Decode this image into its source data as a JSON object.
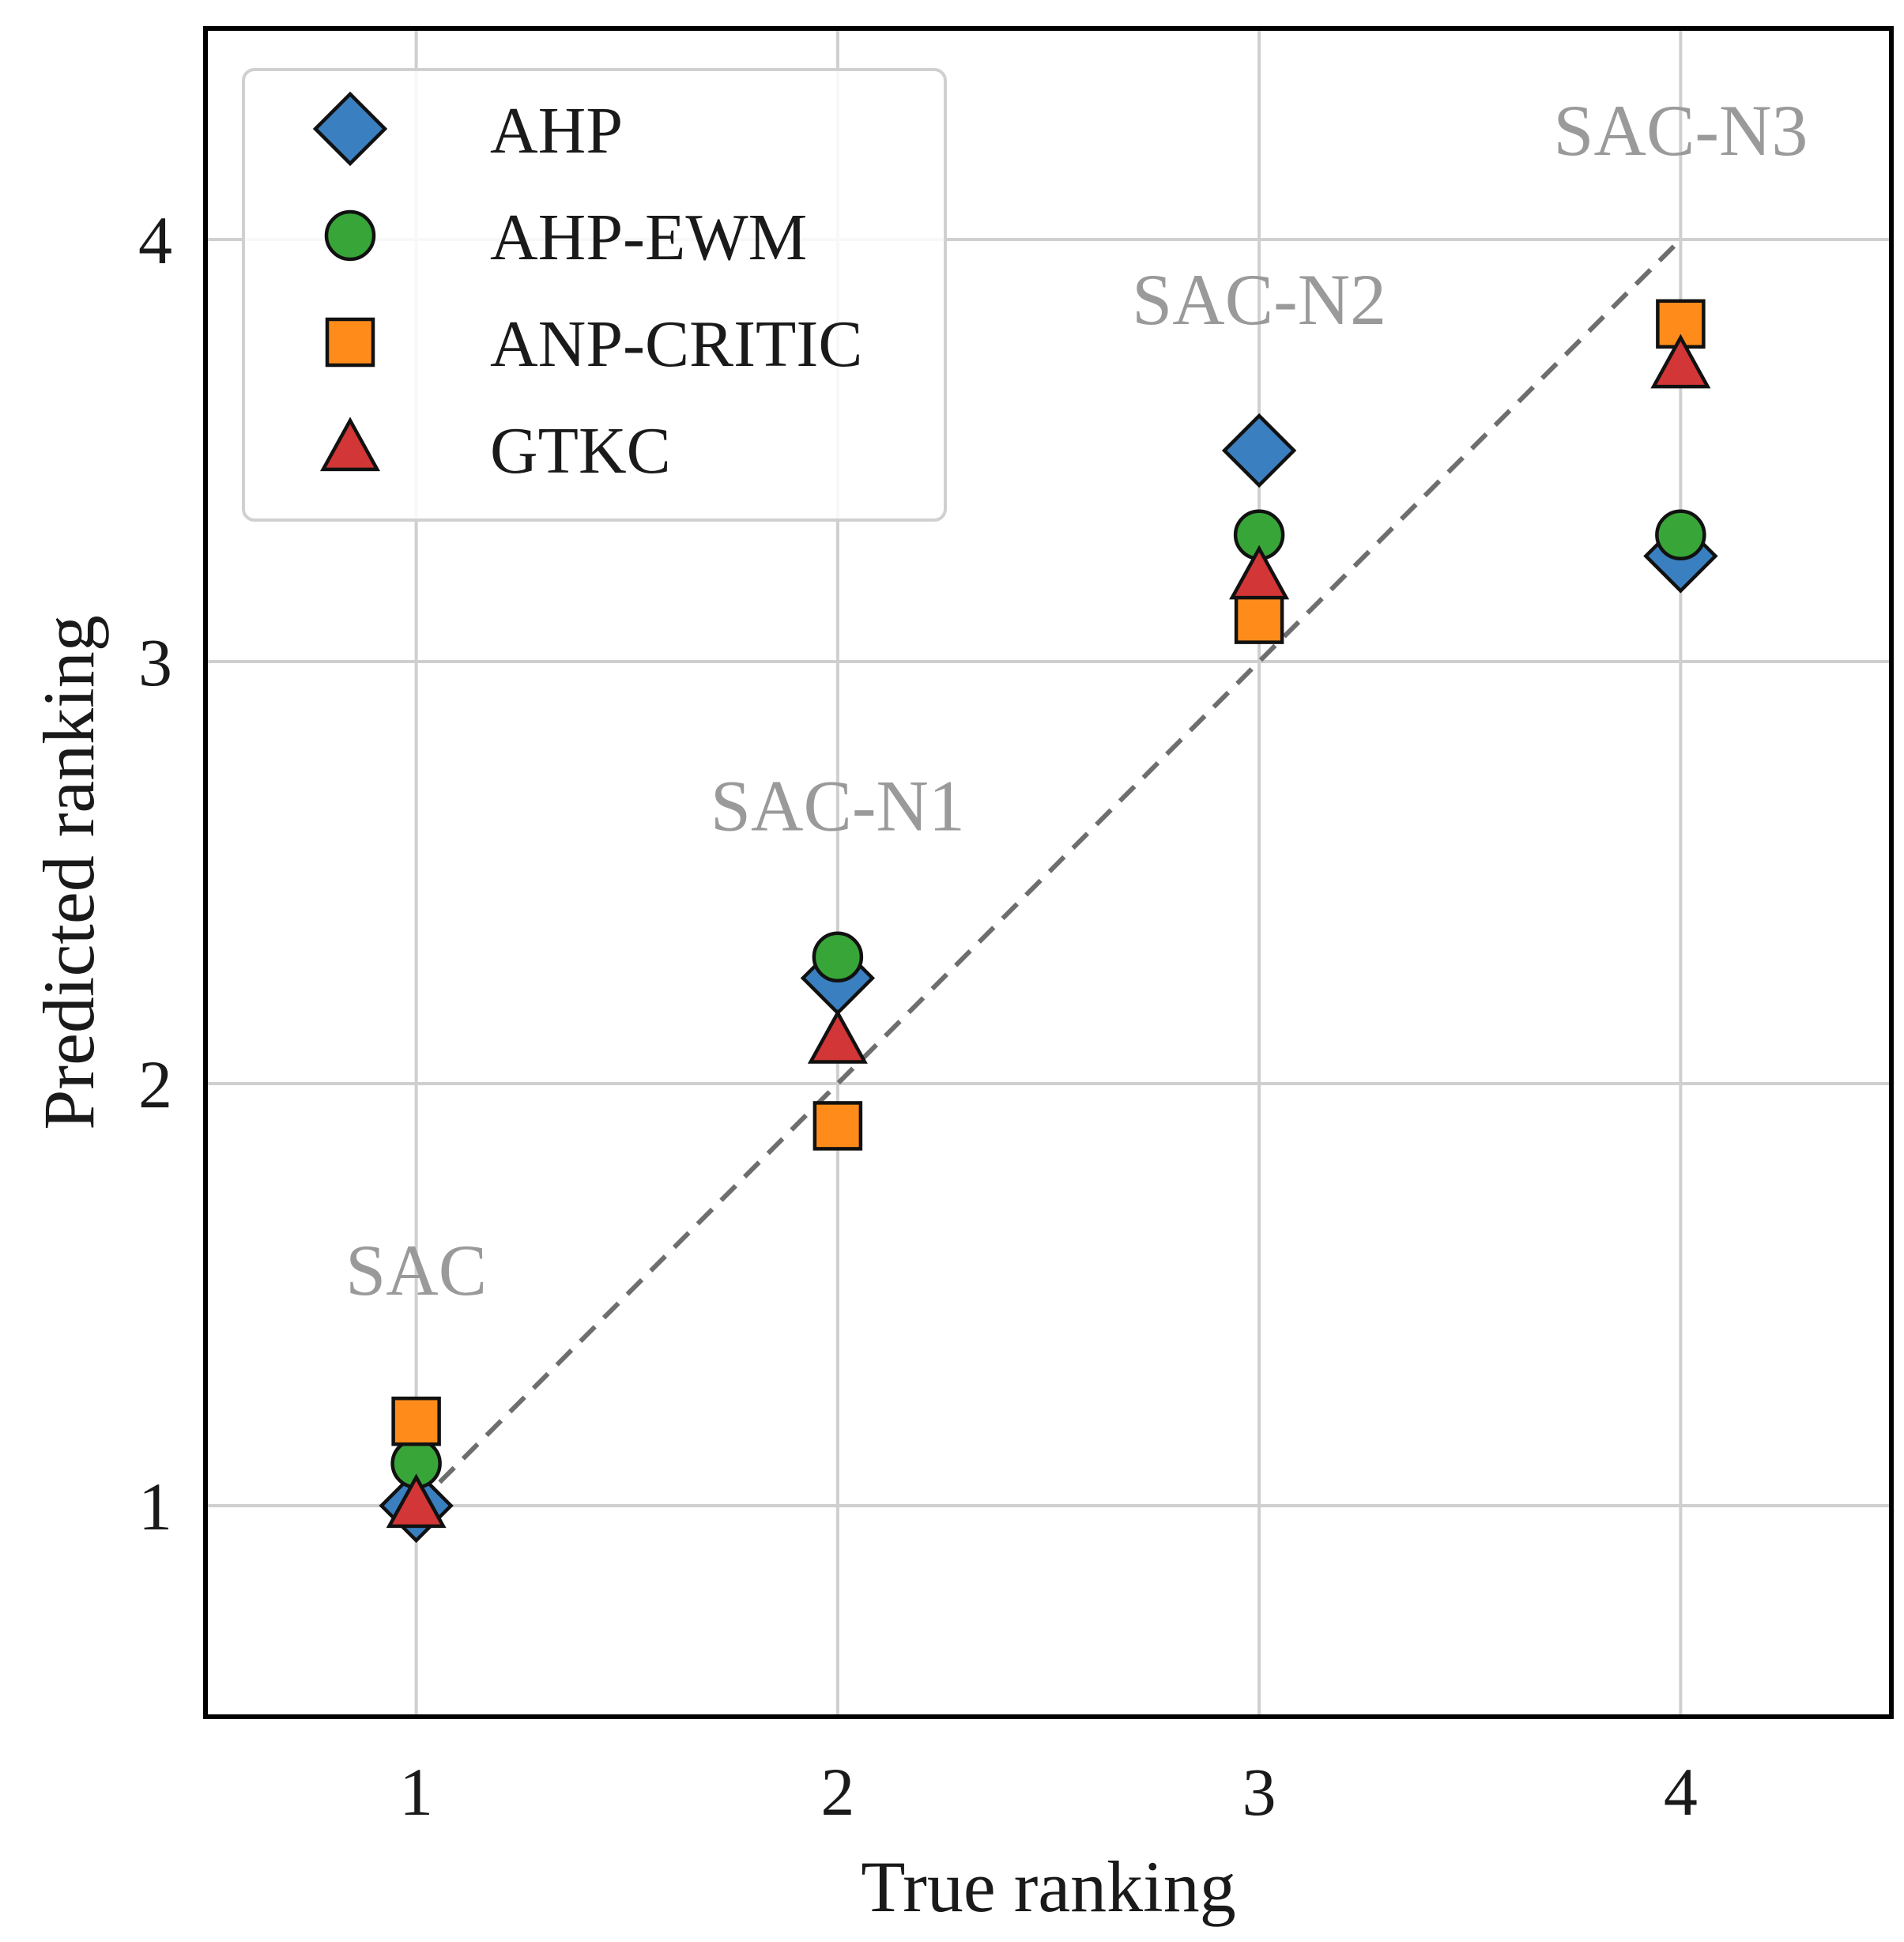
{
  "chart_data": {
    "type": "scatter",
    "title": "",
    "xlabel": "True ranking",
    "ylabel": "Predicted ranking",
    "xlim": [
      0.5,
      4.5
    ],
    "ylim": [
      0.5,
      4.5
    ],
    "xticks": [
      "1",
      "2",
      "3",
      "4"
    ],
    "yticks": [
      "1",
      "2",
      "3",
      "4"
    ],
    "grid": true,
    "legend_position": "top-left",
    "reference_line": {
      "style": "dashed",
      "color": "#6e6e6e",
      "from": [
        1,
        1
      ],
      "to": [
        4,
        4
      ]
    },
    "series": [
      {
        "name": "AHP",
        "marker": "diamond",
        "color": "#3a7fbf",
        "x": [
          1,
          2,
          3,
          4
        ],
        "y": [
          1.0,
          2.25,
          3.5,
          3.25
        ]
      },
      {
        "name": "AHP-EWM",
        "marker": "circle",
        "color": "#38a538",
        "x": [
          1,
          2,
          3,
          4
        ],
        "y": [
          1.1,
          2.3,
          3.3,
          3.3
        ]
      },
      {
        "name": "ANP-CRITIC",
        "marker": "square",
        "color": "#ff8c1a",
        "x": [
          1,
          2,
          3,
          4
        ],
        "y": [
          1.2,
          1.9,
          3.1,
          3.8
        ]
      },
      {
        "name": "GTKC",
        "marker": "triangle",
        "color": "#d33636",
        "x": [
          1,
          2,
          3,
          4
        ],
        "y": [
          1.0,
          2.1,
          3.2,
          3.7
        ]
      }
    ],
    "annotations": [
      {
        "text": "SAC",
        "x": 1,
        "y": 1.5
      },
      {
        "text": "SAC-N1",
        "x": 2,
        "y": 2.6
      },
      {
        "text": "SAC-N2",
        "x": 3,
        "y": 3.8
      },
      {
        "text": "SAC-N3",
        "x": 4,
        "y": 4.2
      }
    ]
  }
}
